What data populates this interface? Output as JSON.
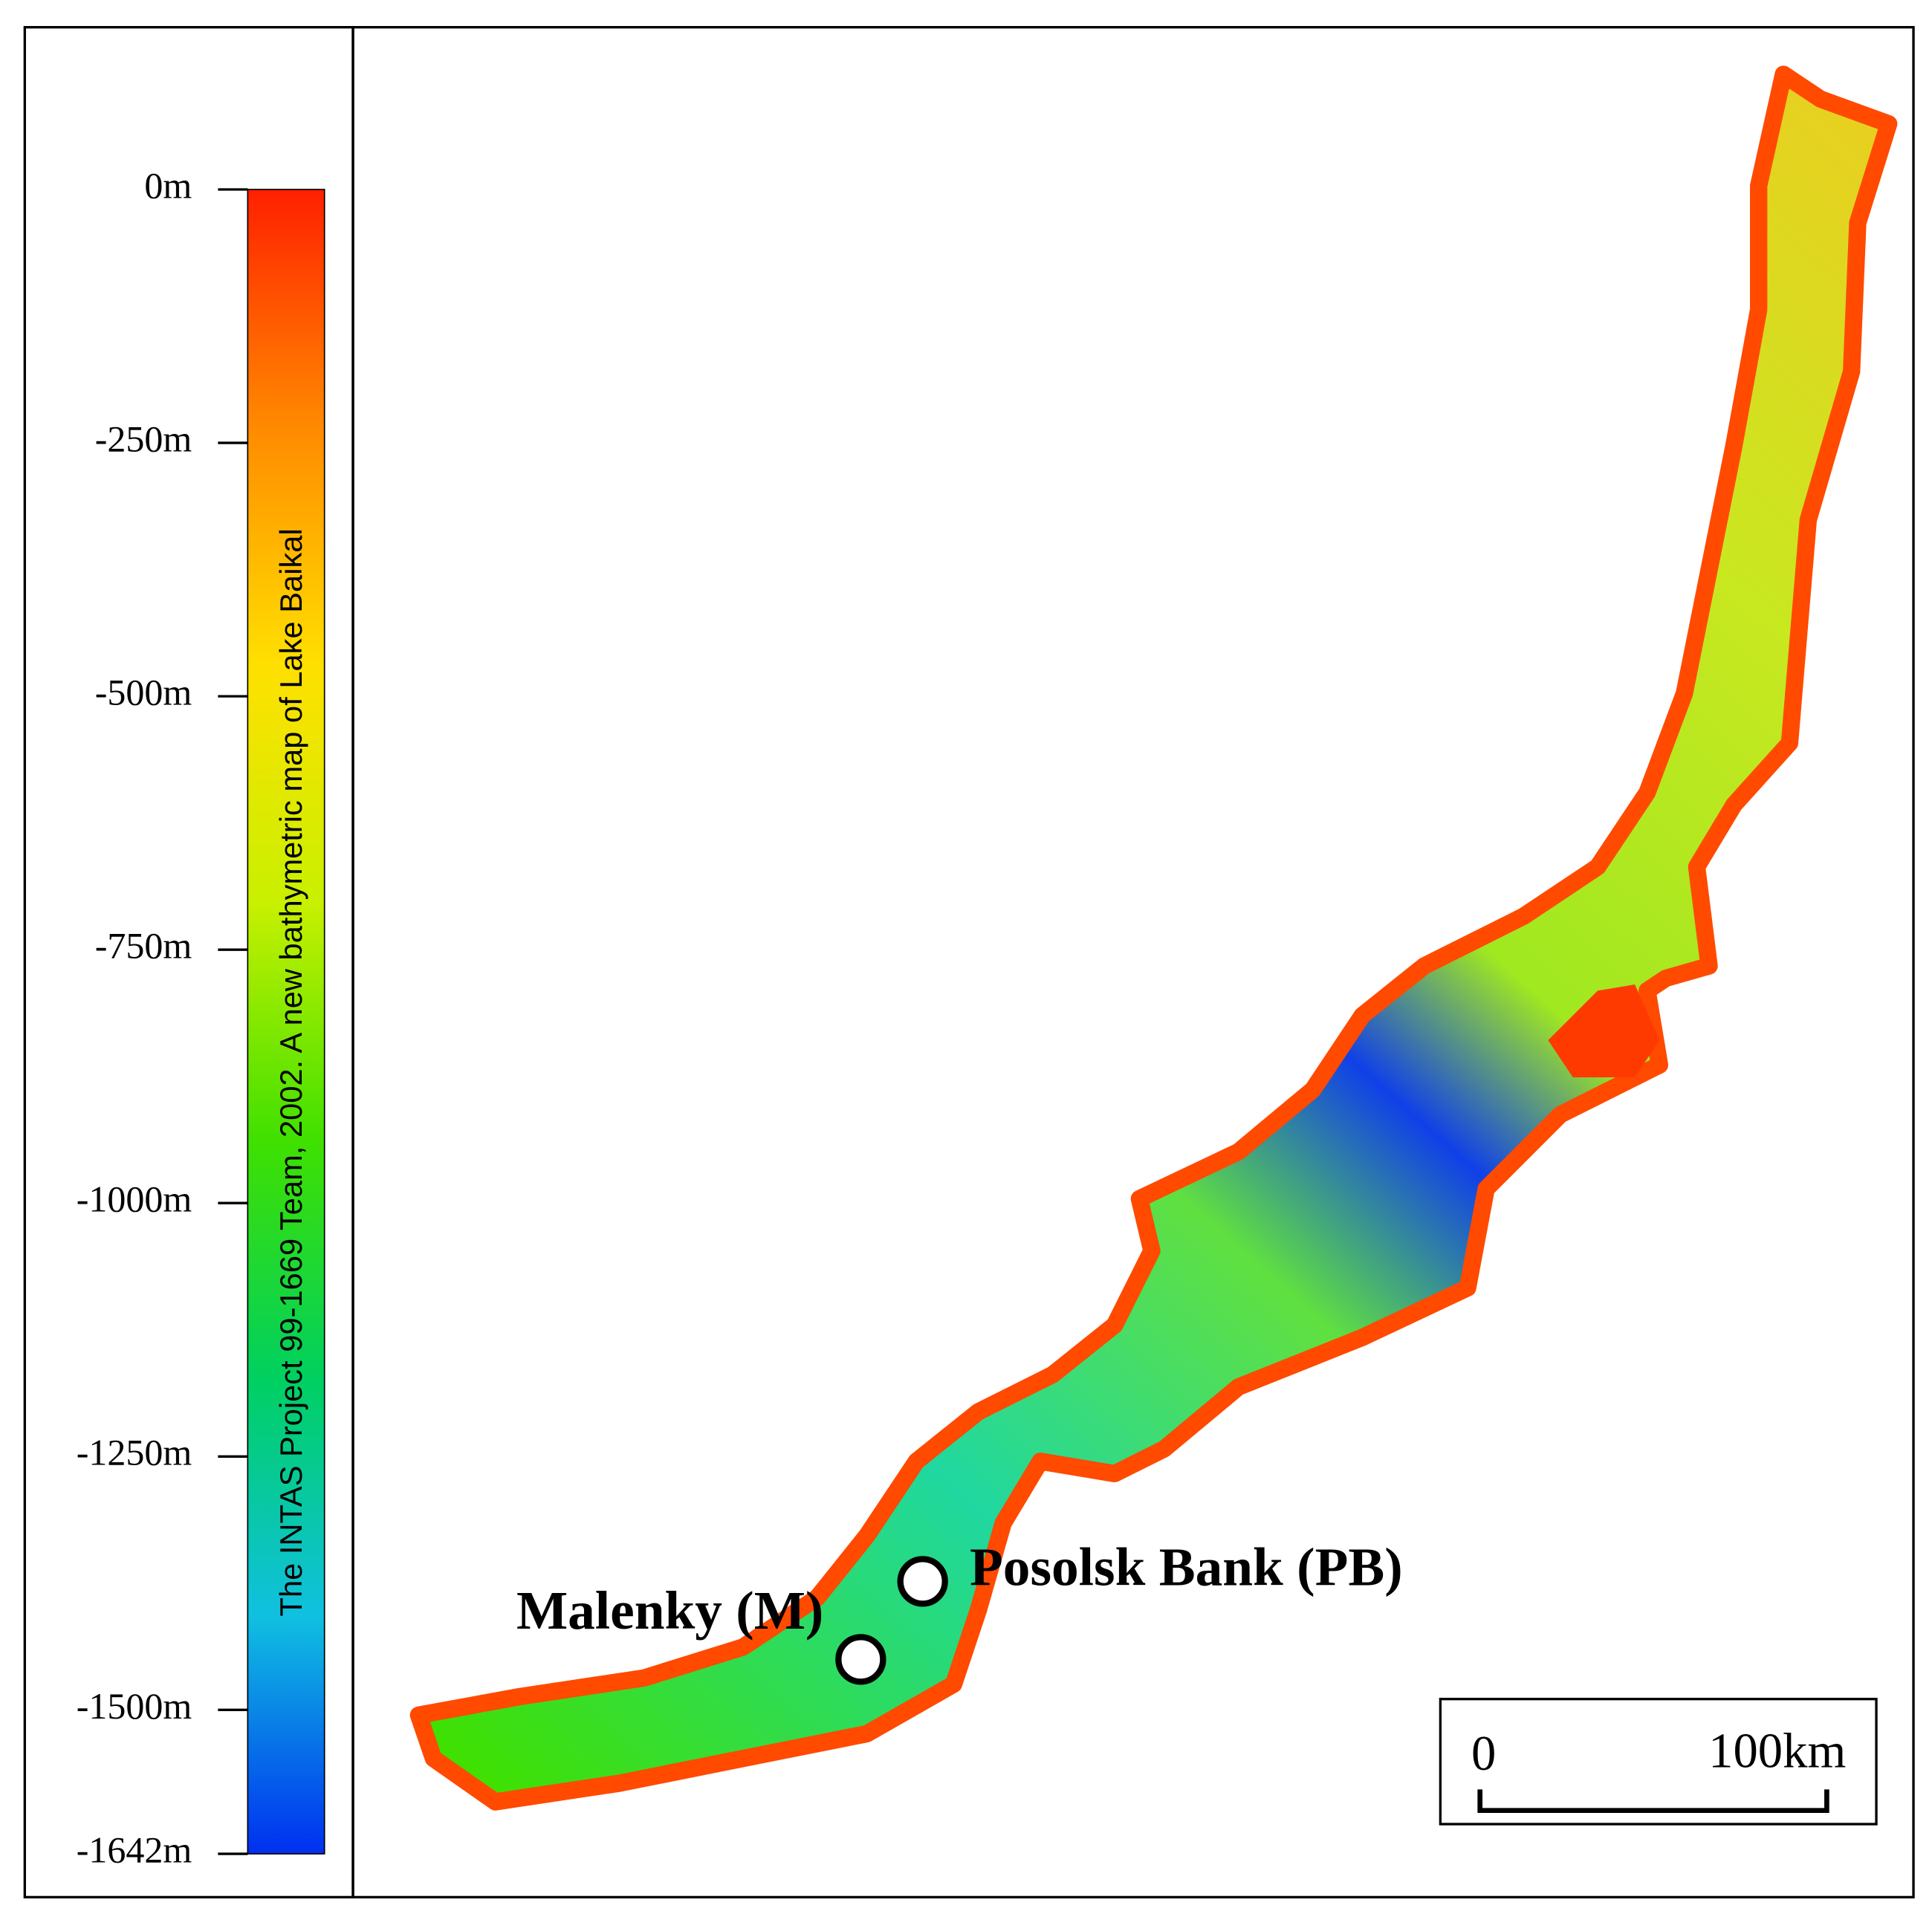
{
  "colorbar": {
    "caption": "The INTAS Project 99-1669 Team, 2002. A new bathymetric map of Lake Baikal",
    "range": [
      0,
      -1642
    ],
    "ticks": [
      {
        "value": 0,
        "label": "0m"
      },
      {
        "value": -250,
        "label": "-250m"
      },
      {
        "value": -500,
        "label": "-500m"
      },
      {
        "value": -750,
        "label": "-750m"
      },
      {
        "value": -1000,
        "label": "-1000m"
      },
      {
        "value": -1250,
        "label": "-1250m"
      },
      {
        "value": -1500,
        "label": "-1500m"
      },
      {
        "value": -1642,
        "label": "-1642m"
      }
    ],
    "colors": [
      "#ff2000",
      "#ff8a00",
      "#ffe000",
      "#c8f000",
      "#40e000",
      "#00d060",
      "#10c0e0",
      "#0030f0"
    ]
  },
  "sites": [
    {
      "label": "Posolsk Bank (PB)"
    },
    {
      "label": "Malenky (M)"
    }
  ],
  "scale_bar": {
    "start": "0",
    "end": "100km"
  }
}
